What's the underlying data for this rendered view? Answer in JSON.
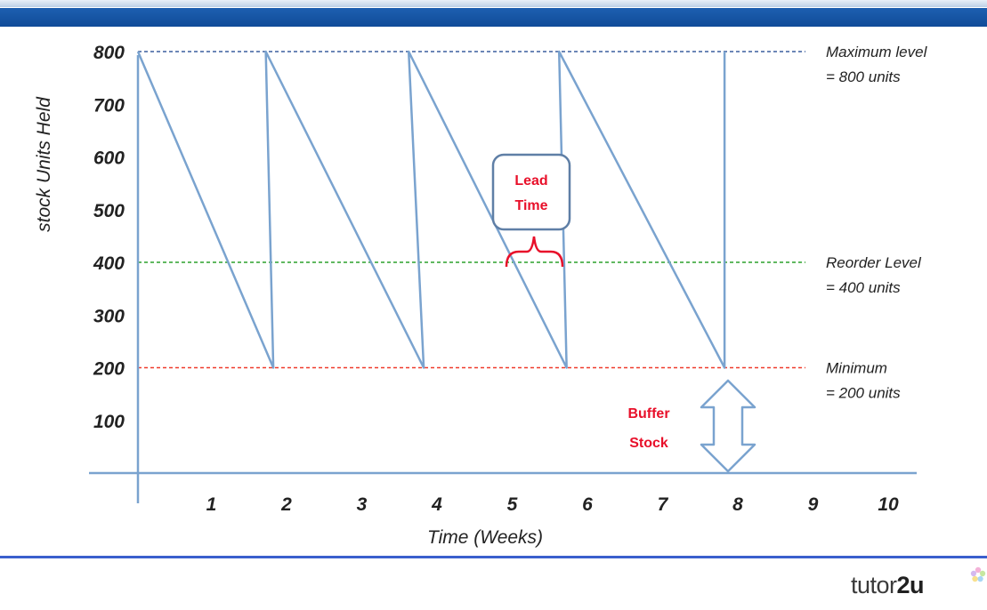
{
  "chart_data": {
    "type": "line",
    "xlabel": "Time (Weeks)",
    "ylabel": "stock Units Held",
    "x_ticks": [
      "1",
      "2",
      "3",
      "4",
      "5",
      "6",
      "7",
      "8",
      "9",
      "10"
    ],
    "y_ticks": [
      "100",
      "200",
      "300",
      "400",
      "500",
      "600",
      "700",
      "800"
    ],
    "xlim": [
      0,
      10.5
    ],
    "ylim": [
      0,
      850
    ],
    "series": [
      {
        "x": [
          0,
          1.8,
          1.7,
          3.8,
          3.6,
          5.7,
          5.6,
          7.8,
          7.8
        ],
        "y": [
          800,
          200,
          800,
          200,
          800,
          200,
          800,
          200,
          800
        ]
      }
    ],
    "reference_lines": [
      {
        "value": 800,
        "label": [
          "Maximum level",
          "= 800 units"
        ],
        "color": "#3b5f9e"
      },
      {
        "value": 400,
        "label": [
          "Reorder Level",
          "= 400 units"
        ],
        "color": "#2ca02c"
      },
      {
        "value": 200,
        "label": [
          "Minimum",
          "= 200 units"
        ],
        "color": "#ef3b2c"
      }
    ],
    "annotations": {
      "lead_time": [
        "Lead",
        "Time"
      ],
      "buffer_stock": [
        "Buffer",
        "Stock"
      ]
    },
    "colors": {
      "series": "#7aa3cf",
      "axis": "#7aa3cf",
      "callout_border": "#5f7fa6",
      "red_text": "#e8102a"
    },
    "grid": false
  },
  "branding": {
    "logo_text": "tutor",
    "logo_accent": "2u",
    "logo_icon": "flower-icon"
  }
}
